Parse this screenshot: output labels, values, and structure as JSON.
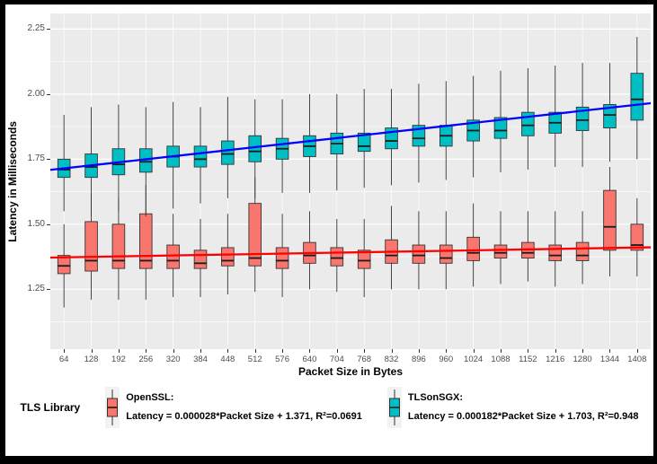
{
  "axes": {
    "x_title": "Packet Size in Bytes",
    "y_title": "Latency in Milliseconds"
  },
  "legend": {
    "title": "TLS Library",
    "items": [
      {
        "name": "OpenSSL:",
        "equation": "Latency = 0.000028*Packet Size + 1.371, R²=0.0691"
      },
      {
        "name": "TLSonSGX:",
        "equation": "Latency = 0.000182*Packet Size + 1.703, R²=0.948"
      }
    ]
  },
  "chart_data": {
    "type": "boxplot",
    "xlabel": "Packet Size in Bytes",
    "ylabel": "Latency in Milliseconds",
    "panel_bg": "#EBEBEB",
    "grid_color": "#FFFFFF",
    "ylim": [
      1.02,
      2.31
    ],
    "yticks": [
      1.25,
      1.5,
      1.75,
      2.0,
      2.25
    ],
    "ytick_labels": [
      "1.25",
      "1.50",
      "1.75",
      "2.00",
      "2.25"
    ],
    "yticks_minor": [
      1.125,
      1.375,
      1.625,
      1.875,
      2.125
    ],
    "categories": [
      64,
      128,
      192,
      256,
      320,
      384,
      448,
      512,
      576,
      640,
      704,
      768,
      832,
      896,
      960,
      1024,
      1088,
      1152,
      1216,
      1280,
      1344,
      1408
    ],
    "series": [
      {
        "name": "OpenSSL",
        "color": "#F8766D",
        "regression": {
          "slope": 2.8e-05,
          "intercept": 1.371,
          "r2": 0.0691,
          "line_color": "#FF0000"
        },
        "boxes": [
          [
            1.18,
            1.31,
            1.34,
            1.38,
            1.5
          ],
          [
            1.21,
            1.32,
            1.36,
            1.51,
            1.62
          ],
          [
            1.21,
            1.33,
            1.36,
            1.5,
            1.6
          ],
          [
            1.21,
            1.33,
            1.36,
            1.54,
            1.65
          ],
          [
            1.22,
            1.33,
            1.36,
            1.42,
            1.54
          ],
          [
            1.22,
            1.33,
            1.35,
            1.4,
            1.52
          ],
          [
            1.23,
            1.34,
            1.36,
            1.41,
            1.54
          ],
          [
            1.24,
            1.34,
            1.37,
            1.58,
            1.68
          ],
          [
            1.22,
            1.33,
            1.36,
            1.41,
            1.54
          ],
          [
            1.25,
            1.35,
            1.38,
            1.43,
            1.55
          ],
          [
            1.24,
            1.34,
            1.37,
            1.41,
            1.52
          ],
          [
            1.22,
            1.33,
            1.36,
            1.4,
            1.52
          ],
          [
            1.25,
            1.35,
            1.38,
            1.44,
            1.57
          ],
          [
            1.25,
            1.35,
            1.38,
            1.42,
            1.55
          ],
          [
            1.25,
            1.35,
            1.37,
            1.42,
            1.55
          ],
          [
            1.26,
            1.36,
            1.39,
            1.45,
            1.58
          ],
          [
            1.27,
            1.37,
            1.39,
            1.42,
            1.55
          ],
          [
            1.28,
            1.37,
            1.39,
            1.43,
            1.55
          ],
          [
            1.26,
            1.36,
            1.38,
            1.42,
            1.55
          ],
          [
            1.27,
            1.36,
            1.38,
            1.43,
            1.55
          ],
          [
            1.3,
            1.4,
            1.49,
            1.63,
            1.72
          ],
          [
            1.3,
            1.4,
            1.42,
            1.5,
            1.6
          ]
        ]
      },
      {
        "name": "TLSonSGX",
        "color": "#00BFC4",
        "regression": {
          "slope": 0.000182,
          "intercept": 1.703,
          "r2": 0.948,
          "line_color": "#0000FF"
        },
        "boxes": [
          [
            1.55,
            1.68,
            1.71,
            1.75,
            1.92
          ],
          [
            1.53,
            1.68,
            1.72,
            1.77,
            1.95
          ],
          [
            1.55,
            1.69,
            1.73,
            1.79,
            1.96
          ],
          [
            1.53,
            1.7,
            1.74,
            1.79,
            1.95
          ],
          [
            1.56,
            1.72,
            1.76,
            1.8,
            1.97
          ],
          [
            1.58,
            1.72,
            1.75,
            1.8,
            1.95
          ],
          [
            1.6,
            1.73,
            1.77,
            1.82,
            1.99
          ],
          [
            1.6,
            1.74,
            1.78,
            1.84,
            1.98
          ],
          [
            1.62,
            1.75,
            1.79,
            1.83,
            1.98
          ],
          [
            1.62,
            1.76,
            1.8,
            1.84,
            2.0
          ],
          [
            1.63,
            1.77,
            1.81,
            1.85,
            2.0
          ],
          [
            1.64,
            1.78,
            1.8,
            1.85,
            2.02
          ],
          [
            1.65,
            1.79,
            1.82,
            1.87,
            2.02
          ],
          [
            1.66,
            1.8,
            1.83,
            1.88,
            2.04
          ],
          [
            1.67,
            1.8,
            1.84,
            1.88,
            2.05
          ],
          [
            1.68,
            1.82,
            1.86,
            1.9,
            2.07
          ],
          [
            1.7,
            1.83,
            1.86,
            1.91,
            2.09
          ],
          [
            1.71,
            1.84,
            1.88,
            1.93,
            2.1
          ],
          [
            1.72,
            1.85,
            1.89,
            1.93,
            2.11
          ],
          [
            1.72,
            1.86,
            1.9,
            1.95,
            2.12
          ],
          [
            1.74,
            1.87,
            1.92,
            1.96,
            2.12
          ],
          [
            1.75,
            1.9,
            1.98,
            2.08,
            2.22
          ]
        ]
      }
    ]
  }
}
